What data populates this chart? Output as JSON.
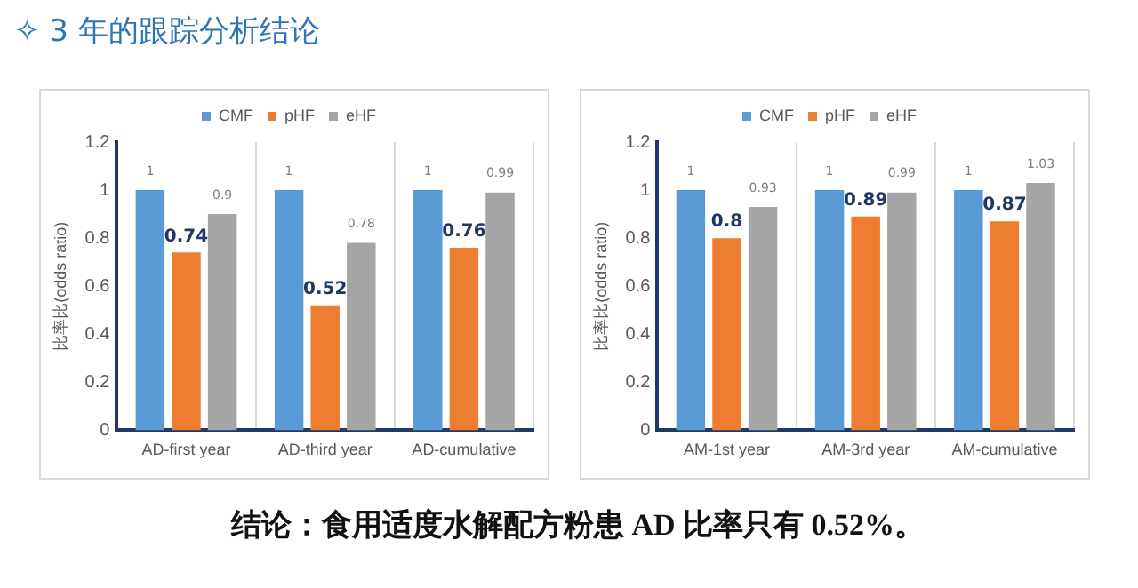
{
  "chart_data": [
    {
      "type": "bar",
      "title": "✧  3 年的跟踪分析结论",
      "annotations": [
        "结论：食用适度水解配方粉患 AD 比率只有 0.52%。"
      ],
      "ylabel": "比率比(odds ratio)",
      "categories": [
        "AD-first year",
        "AD-third year",
        "AD-cumulative"
      ],
      "series": [
        {
          "name": "CMF",
          "color": "#5b9bd5",
          "values": [
            1,
            1,
            1
          ]
        },
        {
          "name": "pHF",
          "color": "#ed7d31",
          "values": [
            0.74,
            0.52,
            0.76
          ]
        },
        {
          "name": "eHF",
          "color": "#a5a5a5",
          "values": [
            0.9,
            0.78,
            0.99
          ]
        }
      ],
      "ylim": [
        0,
        1.2
      ],
      "yticks": [
        0,
        0.2,
        0.4,
        0.6,
        0.8,
        1,
        1.2
      ],
      "grid": "x",
      "legend": "top",
      "data_labels": true
    },
    {
      "type": "bar",
      "ylabel": "比率比(odds ratio)",
      "categories": [
        "AM-1st year",
        "AM-3rd year",
        "AM-cumulative"
      ],
      "series": [
        {
          "name": "CMF",
          "color": "#5b9bd5",
          "values": [
            1,
            1,
            1
          ]
        },
        {
          "name": "pHF",
          "color": "#ed7d31",
          "values": [
            0.8,
            0.89,
            0.87
          ]
        },
        {
          "name": "eHF",
          "color": "#a5a5a5",
          "values": [
            0.93,
            0.99,
            1.03
          ]
        }
      ],
      "ylim": [
        0,
        1.2
      ],
      "yticks": [
        0,
        0.2,
        0.4,
        0.6,
        0.8,
        1,
        1.2
      ],
      "grid": "x",
      "legend": "top",
      "data_labels": true
    }
  ]
}
